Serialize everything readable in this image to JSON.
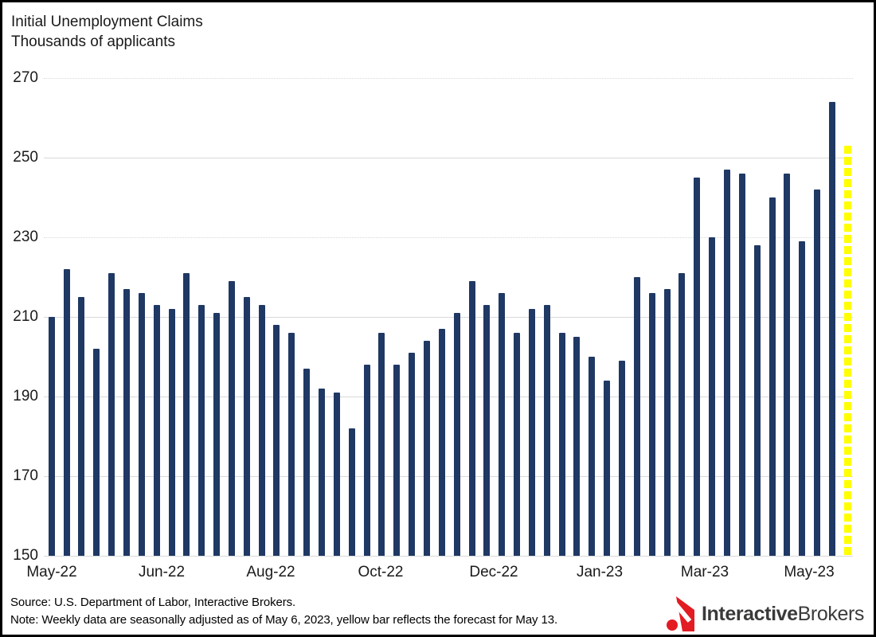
{
  "header": {
    "title": "Initial Unemployment Claims",
    "subtitle": "Thousands of applicants"
  },
  "chart_data": {
    "type": "bar",
    "title": "Initial Unemployment Claims",
    "subtitle": "Thousands of applicants",
    "ylim": [
      150,
      270
    ],
    "yticks": [
      150,
      170,
      190,
      210,
      230,
      250,
      270
    ],
    "grid": true,
    "xticklabels": [
      "May-22",
      "Jun-22",
      "Aug-22",
      "Oct-22",
      "Dec-22",
      "Jan-23",
      "Mar-23",
      "May-23"
    ],
    "series_note": "weekly initial unemployment claims, thousands",
    "values": [
      210,
      222,
      215,
      202,
      221,
      217,
      216,
      213,
      212,
      221,
      213,
      211,
      219,
      215,
      213,
      208,
      206,
      197,
      192,
      191,
      182,
      198,
      206,
      198,
      201,
      204,
      207,
      211,
      219,
      213,
      216,
      206,
      212,
      213,
      206,
      205,
      200,
      194,
      199,
      220,
      216,
      217,
      221,
      245,
      230,
      247,
      246,
      228,
      240,
      246,
      229,
      242,
      264
    ],
    "forecast_value": 253,
    "bar_color": "#1F3864",
    "forecast_color": "#FFFF00",
    "gridline_color": "#D9D9D9"
  },
  "footer": {
    "source": "Source: U.S. Department of Labor, Interactive Brokers.",
    "note": "Note: Weekly data are seasonally adjusted as of May 6, 2023, yellow bar reflects the forecast for May 13.",
    "logo": {
      "bold": "Interactive",
      "regular": "Brokers",
      "icon_color": "#E31B23",
      "text_color": "#3A3A39"
    }
  }
}
